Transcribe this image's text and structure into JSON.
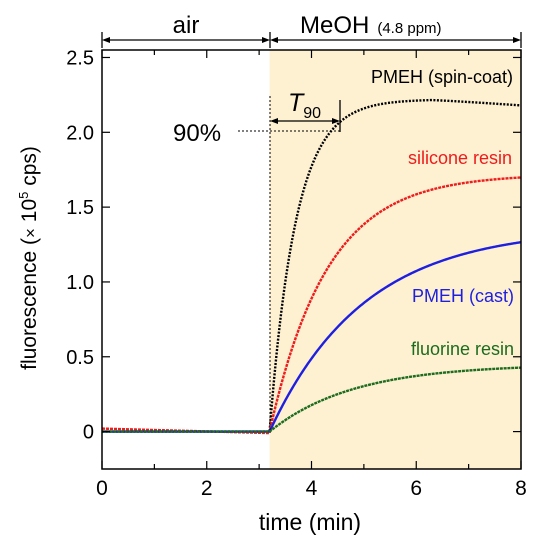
{
  "chart_data": {
    "type": "line",
    "xlabel": "time (min)",
    "ylabel_prefix": "fluorescence (",
    "ylabel_times": "×",
    "ylabel_base": " 10",
    "ylabel_exp": "5",
    "ylabel_suffix": " cps)",
    "xlim": [
      0,
      8
    ],
    "ylim": [
      -0.25,
      2.55
    ],
    "x_ticks": [
      "0",
      "2",
      "4",
      "6",
      "8"
    ],
    "y_ticks": [
      "0",
      "0.5",
      "1.0",
      "1.5",
      "2.0",
      "2.5"
    ],
    "grid": false,
    "phases": [
      {
        "label": "air",
        "x_start": 0,
        "x_end": 3.2
      },
      {
        "label": "MeOH",
        "label_note": "(4.8 ppm)",
        "x_start": 3.2,
        "x_end": 8,
        "shade_color": "#fdf1d2"
      }
    ],
    "t90": {
      "symbol": "T",
      "subscript": "90",
      "x_start": 3.2,
      "x_end": 4.6,
      "level_label": "90%",
      "level_y": 2.0
    },
    "gas_on_time": 3.2,
    "series": [
      {
        "name": "PMEH (spin-coat)",
        "color": "#000000",
        "y0": 0.0,
        "plateau": 2.22,
        "tau": 0.5,
        "peak_time": 6.3,
        "peak_decline": 0.04
      },
      {
        "name": "silicone resin",
        "color": "#ee1c1c",
        "y0": 0.02,
        "plateau": 1.72,
        "tau": 1.1
      },
      {
        "name": "PMEH (cast)",
        "color": "#1f1fe0",
        "y0": 0.0,
        "plateau": 1.36,
        "tau": 1.8
      },
      {
        "name": "fluorine resin",
        "color": "#1d6b1d",
        "y0": 0.0,
        "plateau": 0.45,
        "tau": 1.6
      }
    ]
  }
}
